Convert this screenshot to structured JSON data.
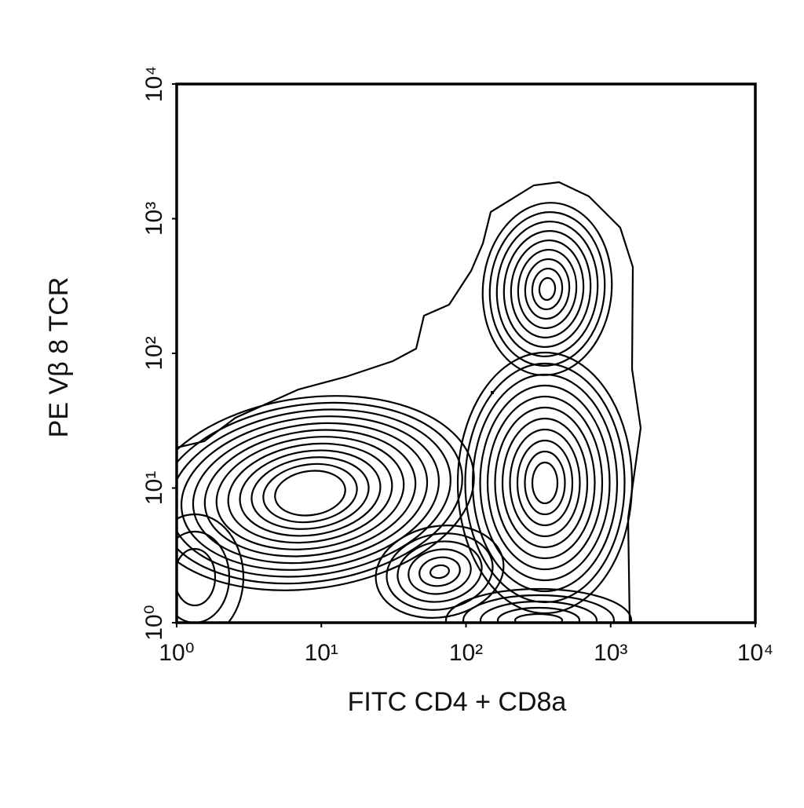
{
  "chart_data": {
    "type": "contour",
    "x_label": "FITC  CD4 + CD8a",
    "y_label": "PE Vβ 8 TCR",
    "xscale": "log",
    "yscale": "log",
    "xlim": [
      1,
      10000
    ],
    "ylim": [
      1,
      10000
    ],
    "xticks": [
      {
        "value": 1,
        "label": "10⁰"
      },
      {
        "value": 10,
        "label": "10¹"
      },
      {
        "value": 100,
        "label": "10²"
      },
      {
        "value": 1000,
        "label": "10³"
      },
      {
        "value": 10000,
        "label": "10⁴"
      }
    ],
    "yticks": [
      {
        "value": 1,
        "label": "10⁰"
      },
      {
        "value": 10,
        "label": "10¹"
      },
      {
        "value": 100,
        "label": "10²"
      },
      {
        "value": 1000,
        "label": "10³"
      },
      {
        "value": 10000,
        "label": "10⁴"
      }
    ],
    "color": "#000000"
  }
}
